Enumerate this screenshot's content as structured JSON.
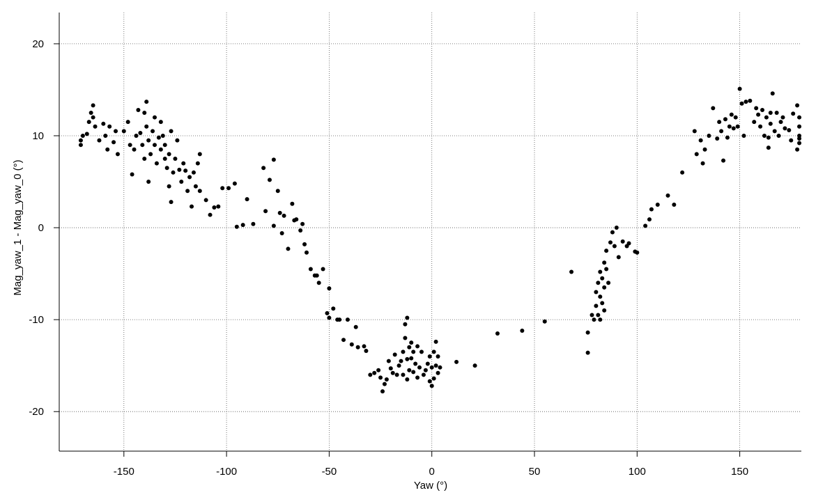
{
  "chart_data": {
    "type": "scatter",
    "x_label": "Yaw (°)",
    "y_label": "Mag_yaw_1 - Mag_yaw_0 (°)",
    "color": "#000000",
    "grid": true,
    "xlim": [
      -181.5,
      180
    ],
    "ylim": [
      -24.3,
      23.4
    ],
    "xticks": [
      -150,
      -100,
      -50,
      0,
      50,
      100,
      150
    ],
    "yticks": [
      -20,
      -10,
      0,
      10,
      20
    ],
    "x": [
      -171,
      -171,
      -170,
      -168,
      -167,
      -166,
      -165,
      -165,
      -164,
      -162,
      -160,
      -159,
      -158,
      -157,
      -155,
      -154,
      -153,
      -150,
      -148,
      -147,
      -146,
      -145,
      -144,
      -143,
      -142,
      -141,
      -140,
      -140,
      -139,
      -139,
      -138,
      -138,
      -137,
      -136,
      -135,
      -135,
      -134,
      -133,
      -132,
      -132,
      -131,
      -130,
      -130,
      -129,
      -128,
      -128,
      -127,
      -127,
      -126,
      -125,
      -124,
      -123,
      -122,
      -121,
      -120,
      -119,
      -118,
      -117,
      -116,
      -115,
      -114,
      -113,
      -113,
      -110,
      -108,
      -106,
      -104,
      -102,
      -99,
      -96,
      -95,
      -92,
      -90,
      -87,
      -82,
      -81,
      -79,
      -77,
      -77,
      -75,
      -74,
      -73,
      -72,
      -70,
      -68,
      -67,
      -66,
      -64,
      -63,
      -62,
      -61,
      -59,
      -57,
      -56,
      -55,
      -53,
      -51,
      -50,
      -50,
      -48,
      -46,
      -45,
      -43,
      -41,
      -39,
      -37,
      -36,
      -33,
      -32,
      -30,
      -28,
      -26,
      -25,
      -24,
      -23,
      -22,
      -21,
      -20,
      -19,
      -18,
      -17,
      -16,
      -15,
      -14,
      -14,
      -13,
      -13,
      -12,
      -12,
      -12,
      -11,
      -11,
      -10,
      -10,
      -9,
      -9,
      -8,
      -7,
      -7,
      -6,
      -5,
      -4,
      -3,
      -2,
      -1,
      -1,
      0,
      0,
      1,
      1,
      2,
      2,
      3,
      3,
      4,
      12,
      21,
      32,
      44,
      55,
      68,
      76,
      76,
      78,
      79,
      80,
      80,
      81,
      81,
      82,
      82,
      82,
      83,
      83,
      84,
      84,
      84,
      85,
      85,
      86,
      87,
      88,
      89,
      90,
      91,
      93,
      95,
      96,
      99,
      100,
      104,
      106,
      107,
      110,
      115,
      118,
      122,
      128,
      129,
      131,
      132,
      133,
      135,
      137,
      139,
      140,
      141,
      142,
      143,
      144,
      145,
      146,
      147,
      148,
      149,
      150,
      151,
      152,
      153,
      155,
      157,
      158,
      159,
      160,
      161,
      162,
      163,
      164,
      164,
      165,
      165,
      166,
      167,
      168,
      169,
      170,
      171,
      172,
      174,
      175,
      176,
      178,
      178,
      179,
      179,
      179,
      179,
      179
    ],
    "values": [
      9,
      9.5,
      10,
      10.2,
      11.5,
      12.5,
      12,
      13.3,
      11,
      9.5,
      11.3,
      10,
      8.5,
      11,
      9.3,
      10.5,
      8,
      10.5,
      11.5,
      9,
      5.8,
      8.5,
      10,
      12.8,
      10.3,
      9,
      12.5,
      7.5,
      13.7,
      11,
      9.5,
      5,
      8,
      10.5,
      9,
      12,
      7,
      9.8,
      8.5,
      11.5,
      10,
      7.5,
      9,
      6.5,
      8,
      4.5,
      10.5,
      2.8,
      6,
      7.5,
      9.5,
      6.3,
      5,
      7,
      6.2,
      4,
      5.5,
      2.3,
      6,
      4.5,
      7,
      4,
      8,
      3,
      1.4,
      2.2,
      2.3,
      4.3,
      4.3,
      4.8,
      0.1,
      0.3,
      3.1,
      0.4,
      6.5,
      1.8,
      5.2,
      7.4,
      0.2,
      4,
      1.6,
      -0.6,
      1.3,
      -2.3,
      2.6,
      0.8,
      0.9,
      -0.3,
      0.4,
      -1.8,
      -2.7,
      -4.5,
      -5.2,
      -5.2,
      -6,
      -4.5,
      -9.3,
      -6.6,
      -9.8,
      -8.8,
      -10,
      -10,
      -12.2,
      -10,
      -12.7,
      -10.8,
      -13,
      -12.9,
      -13.4,
      -16,
      -15.8,
      -15.5,
      -16.3,
      -17.8,
      -17,
      -16.5,
      -14.5,
      -15.3,
      -15.8,
      -13.8,
      -16,
      -15,
      -14.5,
      -16,
      -13.5,
      -12,
      -10.5,
      -9.8,
      -14.3,
      -16.5,
      -13,
      -15.5,
      -14.2,
      -12.5,
      -15.7,
      -13.5,
      -14.8,
      -12.9,
      -16.3,
      -15.2,
      -13.5,
      -16,
      -15.5,
      -14.8,
      -16.7,
      -14,
      -15.2,
      -17.2,
      -13.5,
      -16.4,
      -12.4,
      -15,
      -14,
      -15.8,
      -15.2,
      -14.6,
      -15,
      -11.5,
      -11.2,
      -10.2,
      -4.8,
      -11.4,
      -13.6,
      -9.5,
      -10,
      -7,
      -8.5,
      -6,
      -9.5,
      -4.8,
      -7.5,
      -10,
      -5.5,
      -8.2,
      -3.8,
      -6.5,
      -9,
      -2.5,
      -4.5,
      -6,
      -1.6,
      -0.5,
      -2,
      0,
      -3.2,
      -1.5,
      -2,
      -1.7,
      -2.6,
      -2.7,
      0.2,
      0.9,
      2,
      2.5,
      3.5,
      2.5,
      6,
      10.5,
      8,
      9.5,
      7,
      8.5,
      10,
      13,
      9.7,
      11.5,
      10.5,
      7.3,
      11.8,
      9.8,
      11,
      12.3,
      10.8,
      12,
      11,
      15.1,
      13.5,
      10,
      13.7,
      13.8,
      11.5,
      13,
      12.3,
      11,
      12.8,
      10,
      12,
      9.8,
      8.7,
      12.5,
      11.3,
      14.6,
      10.5,
      12.5,
      10,
      11.5,
      12,
      10.8,
      10.6,
      9.5,
      12.4,
      13.3,
      8.5,
      9.2,
      10,
      11,
      9.7,
      12
    ]
  }
}
